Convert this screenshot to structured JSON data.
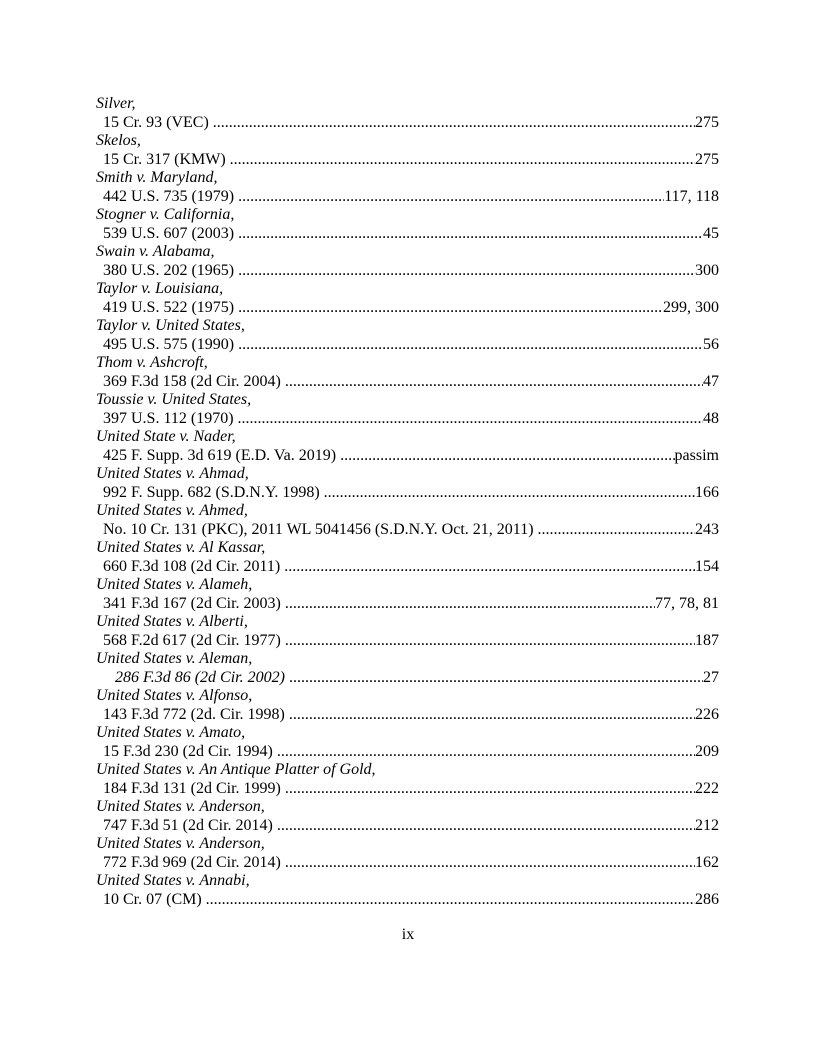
{
  "page": {
    "footer_page_number": "ix"
  },
  "entries": [
    {
      "case": "Silver,",
      "citation": "15 Cr. 93 (VEC)",
      "pages": "275"
    },
    {
      "case": "Skelos,",
      "citation": "15 Cr. 317 (KMW)",
      "pages": "275"
    },
    {
      "case": "Smith v. Maryland,",
      "citation": "442 U.S. 735 (1979)",
      "pages": "117, 118"
    },
    {
      "case": "Stogner v. California,",
      "citation": "539 U.S. 607 (2003)",
      "pages": "45"
    },
    {
      "case": "Swain v. Alabama,",
      "citation": "380 U.S. 202 (1965)",
      "pages": "300"
    },
    {
      "case": "Taylor v. Louisiana,",
      "citation": "419 U.S. 522 (1975)",
      "pages": "299, 300"
    },
    {
      "case": "Taylor v. United States,",
      "citation": "495 U.S. 575 (1990)",
      "pages": "56"
    },
    {
      "case": "Thom v. Ashcroft,",
      "citation": "369 F.3d 158 (2d Cir. 2004)",
      "pages": "47"
    },
    {
      "case": "Toussie v. United States,",
      "citation": "397 U.S. 112 (1970)",
      "pages": "48"
    },
    {
      "case": "United State v. Nader,",
      "citation": "425 F. Supp. 3d 619 (E.D. Va. 2019)",
      "pages": "passim"
    },
    {
      "case": "United States v. Ahmad,",
      "citation": "992 F. Supp. 682 (S.D.N.Y. 1998)",
      "pages": "166"
    },
    {
      "case": "United States v. Ahmed,",
      "citation": "No. 10 Cr. 131 (PKC), 2011 WL 5041456 (S.D.N.Y. Oct. 21, 2011)",
      "pages": "243"
    },
    {
      "case": "United States v. Al Kassar,",
      "citation": "660 F.3d 108 (2d Cir. 2011)",
      "pages": "154"
    },
    {
      "case": "United States v. Alameh,",
      "citation": "341 F.3d 167 (2d Cir. 2003)",
      "pages": "77, 78, 81"
    },
    {
      "case": "United States v. Alberti,",
      "citation": "568 F.2d 617 (2d Cir. 1977)",
      "pages": "187"
    },
    {
      "case": "United States v. Aleman,",
      "citation": "286 F.3d 86 (2d Cir. 2002)",
      "pages": "27",
      "citation_italic": true,
      "citation_extra_indent": true
    },
    {
      "case": "United States v. Alfonso,",
      "citation": "143 F.3d 772 (2d. Cir. 1998)",
      "pages": "226"
    },
    {
      "case": "United States v. Amato,",
      "citation": "15 F.3d 230 (2d Cir. 1994)",
      "pages": "209"
    },
    {
      "case": "United States v. An Antique Platter of Gold,",
      "citation": "184 F.3d 131 (2d Cir. 1999)",
      "pages": "222"
    },
    {
      "case": "United States v. Anderson,",
      "citation": "747 F.3d 51 (2d Cir. 2014)",
      "pages": "212"
    },
    {
      "case": "United States v. Anderson,",
      "citation": "772 F.3d 969 (2d Cir. 2014)",
      "pages": "162"
    },
    {
      "case": "United States v. Annabi,",
      "citation": "10 Cr. 07 (CM)",
      "pages": "286"
    }
  ]
}
